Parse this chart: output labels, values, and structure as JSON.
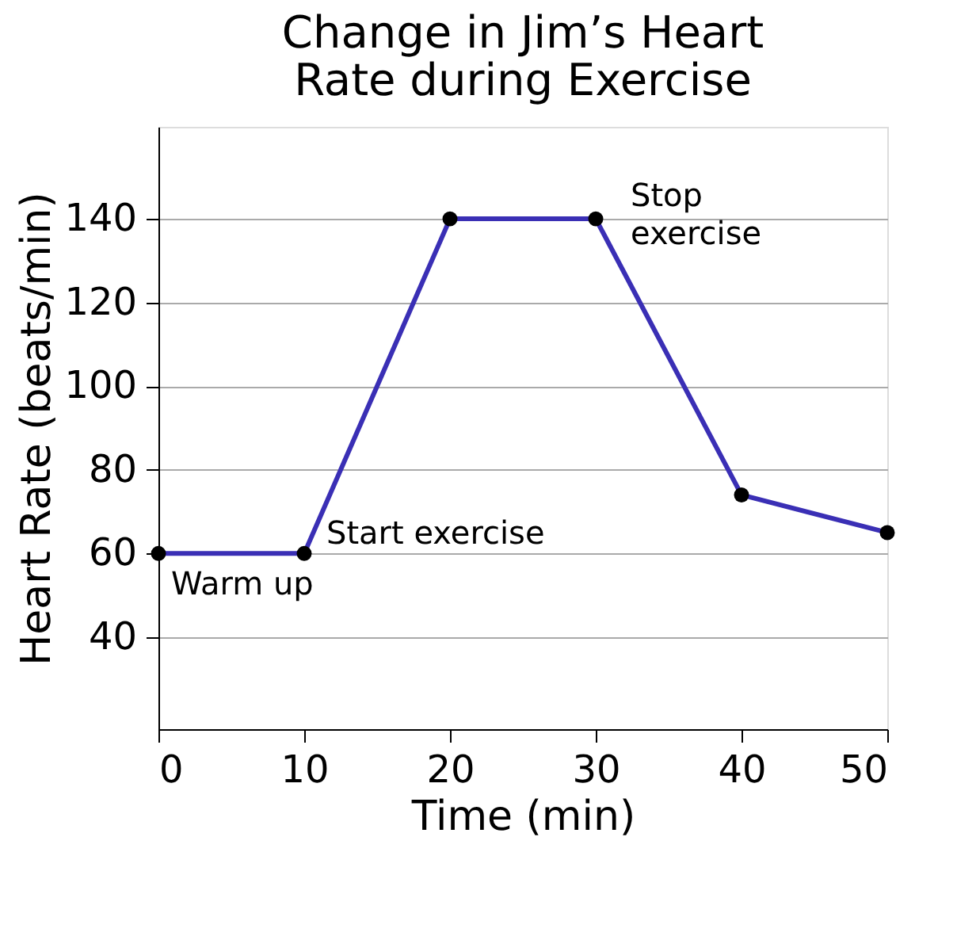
{
  "chart_data": {
    "type": "line",
    "title": "Change in Jim’s Heart Rate during Exercise",
    "xlabel": "Time (min)",
    "ylabel": "Heart Rate (beats/min)",
    "x": [
      0,
      10,
      20,
      30,
      40,
      50
    ],
    "series": [
      {
        "color": "#3a2fb5",
        "values": [
          60,
          60,
          140,
          140,
          74,
          65
        ]
      }
    ],
    "xlim": [
      0,
      50
    ],
    "xticks": [
      0,
      10,
      20,
      30,
      40,
      50
    ],
    "ylim": [
      18,
      162
    ],
    "yticks": [
      40,
      60,
      80,
      100,
      120,
      140
    ],
    "grid": "y",
    "marker": "circle",
    "line_style": "solid",
    "annotations": [
      {
        "text": "Warm up",
        "x": 0,
        "y": 60
      },
      {
        "text": "Start exercise",
        "x": 10,
        "y": 60
      },
      {
        "text": "Stop exercise",
        "x": 30,
        "y": 140
      }
    ]
  }
}
